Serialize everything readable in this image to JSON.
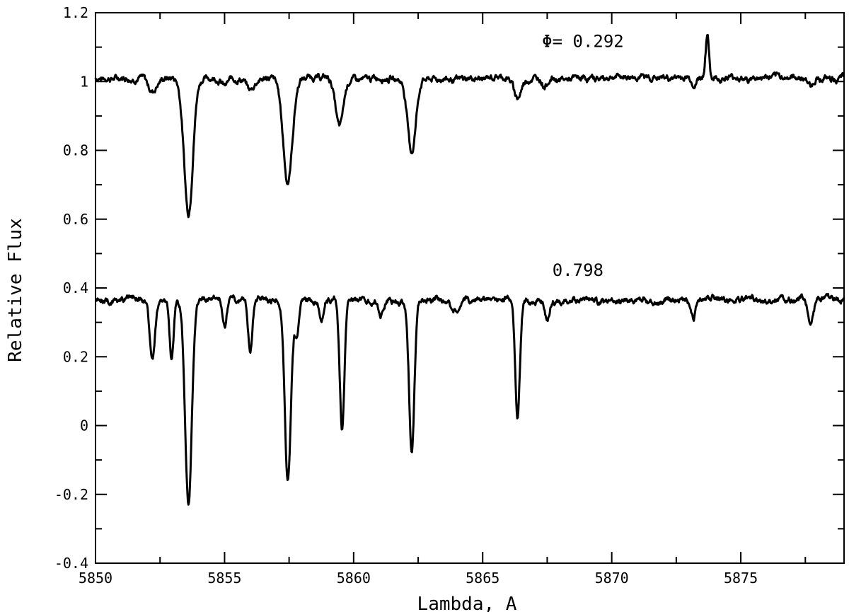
{
  "chart_data": {
    "type": "line",
    "title": "",
    "xlabel": "Lambda, A",
    "ylabel": "Relative Flux",
    "xlim": [
      5850,
      5879
    ],
    "ylim": [
      -0.4,
      1.2
    ],
    "xticks": [
      5850,
      5855,
      5860,
      5865,
      5870,
      5875
    ],
    "yticks": [
      -0.4,
      -0.2,
      0,
      0.2,
      0.4,
      0.6,
      0.8,
      1,
      1.2
    ],
    "xtick_labels": [
      "5850",
      "5855",
      "5860",
      "5865",
      "5870",
      "5875"
    ],
    "ytick_labels": [
      "-0.4",
      "-0.2",
      "0",
      "0.2",
      "0.4",
      "0.6",
      "0.8",
      "1",
      "1.2"
    ],
    "grid": false,
    "annotations": [
      {
        "text": "Φ= 0.292",
        "x": 5867.3,
        "y": 1.1
      },
      {
        "text": "0.798",
        "x": 5867.7,
        "y": 0.435
      }
    ],
    "series": [
      {
        "baseline": 1.01,
        "color": "#000000",
        "lines": [
          {
            "x": 5852.2,
            "depth": 0.04,
            "width": 0.15
          },
          {
            "x": 5853.6,
            "depth": 0.39,
            "width": 0.17
          },
          {
            "x": 5855.0,
            "depth": 0.02,
            "width": 0.12
          },
          {
            "x": 5856.0,
            "depth": 0.035,
            "width": 0.15
          },
          {
            "x": 5857.45,
            "depth": 0.3,
            "width": 0.18
          },
          {
            "x": 5859.45,
            "depth": 0.14,
            "width": 0.15
          },
          {
            "x": 5862.25,
            "depth": 0.21,
            "width": 0.16
          },
          {
            "x": 5866.35,
            "depth": 0.055,
            "width": 0.15
          },
          {
            "x": 5867.4,
            "depth": 0.02,
            "width": 0.1
          },
          {
            "x": 5873.2,
            "depth": 0.025,
            "width": 0.1
          },
          {
            "x": 5873.7,
            "depth": -0.12,
            "width": 0.07
          },
          {
            "x": 5877.7,
            "depth": 0.02,
            "width": 0.1
          }
        ]
      },
      {
        "baseline": 0.365,
        "color": "#000000",
        "lines": [
          {
            "x": 5852.2,
            "depth": 0.18,
            "width": 0.1
          },
          {
            "x": 5852.95,
            "depth": 0.17,
            "width": 0.08
          },
          {
            "x": 5853.6,
            "depth": 0.59,
            "width": 0.13
          },
          {
            "x": 5855.0,
            "depth": 0.08,
            "width": 0.08
          },
          {
            "x": 5856.0,
            "depth": 0.15,
            "width": 0.08
          },
          {
            "x": 5857.45,
            "depth": 0.52,
            "width": 0.12
          },
          {
            "x": 5857.8,
            "depth": 0.1,
            "width": 0.08
          },
          {
            "x": 5858.75,
            "depth": 0.06,
            "width": 0.08
          },
          {
            "x": 5859.55,
            "depth": 0.37,
            "width": 0.09
          },
          {
            "x": 5861.05,
            "depth": 0.045,
            "width": 0.08
          },
          {
            "x": 5862.25,
            "depth": 0.44,
            "width": 0.1
          },
          {
            "x": 5863.9,
            "depth": 0.03,
            "width": 0.15
          },
          {
            "x": 5866.35,
            "depth": 0.34,
            "width": 0.09
          },
          {
            "x": 5867.5,
            "depth": 0.06,
            "width": 0.08
          },
          {
            "x": 5873.15,
            "depth": 0.06,
            "width": 0.1
          },
          {
            "x": 5877.7,
            "depth": 0.075,
            "width": 0.1
          }
        ]
      }
    ]
  }
}
